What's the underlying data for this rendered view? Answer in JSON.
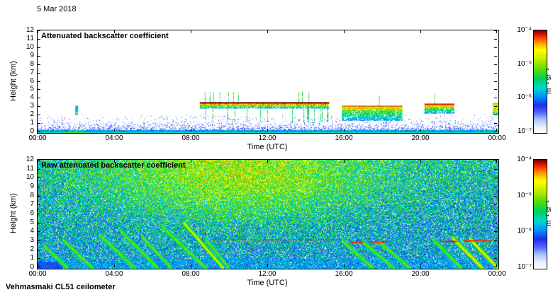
{
  "figure": {
    "date": "5 Mar 2018",
    "station": "Vehmasmaki CL51 ceilometer",
    "background_color": "#ffffff",
    "text_color": "#000000"
  },
  "colormap": {
    "name": "jet-like-with-white-floor",
    "stops": [
      [
        0.0,
        "#ffffff"
      ],
      [
        0.06,
        "#e6eeff"
      ],
      [
        0.13,
        "#a6c1ff"
      ],
      [
        0.2,
        "#4d64ff"
      ],
      [
        0.27,
        "#1f2fe8"
      ],
      [
        0.35,
        "#0090ff"
      ],
      [
        0.44,
        "#00d8cc"
      ],
      [
        0.53,
        "#00cf5c"
      ],
      [
        0.63,
        "#63df00"
      ],
      [
        0.73,
        "#cbef00"
      ],
      [
        0.81,
        "#ffff00"
      ],
      [
        0.88,
        "#ff9e00"
      ],
      [
        0.94,
        "#ff2a00"
      ],
      [
        1.0,
        "#770000"
      ]
    ]
  },
  "chart_data": [
    {
      "id": "attenuated-backscatter",
      "type": "heatmap",
      "title": "Attenuated backscatter coefficient",
      "xlabel": "Time (UTC)",
      "ylabel": "Height (km)",
      "x_range_hours": [
        0,
        24
      ],
      "x_tick_hours": [
        0,
        4,
        8,
        12,
        16,
        20,
        24
      ],
      "x_tick_labels": [
        "00:00",
        "04:00",
        "08:00",
        "12:00",
        "16:00",
        "20:00",
        "00:00"
      ],
      "y_range_km": [
        0,
        12
      ],
      "y_ticks": [
        0,
        1,
        2,
        3,
        4,
        5,
        6,
        7,
        8,
        9,
        10,
        11,
        12
      ],
      "colorbar": {
        "label": "m⁻¹ sr⁻¹",
        "tick_labels": [
          "10⁻⁴",
          "10⁻⁵",
          "10⁻⁶",
          "10⁻⁷"
        ],
        "scale": "log10",
        "range": [
          1e-07,
          0.0001
        ]
      },
      "summary": "White background with shallow aerosol/noise speckle below ~1.5 km all day; strong cloud layer near 3.2-3.6 km from ~08:30-15:10; cloud with fallstreaks ~15:50-19:00 near 2.8-3.2 km; cloud ~20:10-21:40 near 3-3.4 km; small echoes near 02:00 and 23:45; green surface patch ~01:20-02:40.",
      "surface_layer": {
        "max_height_km": 2.2,
        "decay_km": 0.62,
        "ground_band_km": 0.35,
        "green_patch": {
          "t0": 1.3,
          "t1": 2.7,
          "height_km": 0.35
        }
      },
      "clouds": [
        {
          "t0": 8.45,
          "t1": 15.2,
          "base_km": 3.15,
          "top_km": 3.6,
          "strength": 0.97,
          "virga": true,
          "top_spikes": true
        },
        {
          "t0": 15.85,
          "t1": 19.0,
          "base_km": 2.75,
          "top_km": 3.2,
          "strength": 0.92,
          "fall_to_km": 1.4,
          "top_spikes": true
        },
        {
          "t0": 20.15,
          "t1": 21.7,
          "base_km": 3.0,
          "top_km": 3.4,
          "strength": 0.92,
          "fall_to_km": 2.3,
          "top_spikes": true
        },
        {
          "t0": 1.95,
          "t1": 2.12,
          "base_km": 2.4,
          "top_km": 3.2,
          "strength": 0.5
        },
        {
          "t0": 23.7,
          "t1": 24.0,
          "base_km": 2.4,
          "top_km": 3.55,
          "strength": 0.85
        }
      ]
    },
    {
      "id": "raw-attenuated-backscatter",
      "type": "heatmap",
      "title": "Raw attenuated backscatter coefficient",
      "xlabel": "Time (UTC)",
      "ylabel": "Height (km)",
      "x_range_hours": [
        0,
        24
      ],
      "x_tick_hours": [
        0,
        4,
        8,
        12,
        16,
        20,
        24
      ],
      "x_tick_labels": [
        "00:00",
        "04:00",
        "08:00",
        "12:00",
        "16:00",
        "20:00",
        "00:00"
      ],
      "y_range_km": [
        0,
        12
      ],
      "y_ticks": [
        0,
        1,
        2,
        3,
        4,
        5,
        6,
        7,
        8,
        9,
        10,
        11,
        12
      ],
      "colorbar": {
        "label": "m⁻¹ sr⁻¹",
        "tick_labels": [
          "10⁻⁴",
          "10⁻⁵",
          "10⁻⁶",
          "10⁻⁷"
        ],
        "scale": "log10",
        "range": [
          1e-07,
          0.0001
        ]
      },
      "summary": "Dense blue-green noise over the whole domain, enhanced (yellow-orange) aloft around 07:00-14:00 above ~6 km; diagonal green precipitation fallstreaks descending to the surface; red cloud-base line near 3.2 km ~09:00-15:00 with shorter dashes later; solid bluish surface band below ~1 km.",
      "noise": {
        "base": 0.17,
        "height_gain": 0.1,
        "amplitude": 0.4,
        "white_speckle_prob": 0.09
      },
      "enhanced_region": {
        "t_center": 10.5,
        "t_sigma": 4.5,
        "h_center_km": 10.5,
        "h_sigma_km": 3.5,
        "boost": 0.24
      },
      "surface": {
        "band_km": 1.1,
        "dark_block": {
          "t0": 0,
          "t1": 1.3,
          "h_km": 0.8
        }
      },
      "precip_streaks": [
        {
          "t": 0.3,
          "h": 2.6,
          "dt": 1.3
        },
        {
          "t": 1.3,
          "h": 3.2,
          "dt": 1.6
        },
        {
          "t": 3.2,
          "h": 3.8,
          "dt": 1.9
        },
        {
          "t": 4.3,
          "h": 4.2,
          "dt": 2.0
        },
        {
          "t": 5.4,
          "h": 3.6,
          "dt": 1.6
        },
        {
          "t": 6.5,
          "h": 4.6,
          "dt": 2.3
        },
        {
          "t": 7.6,
          "h": 5.1,
          "dt": 2.1,
          "v": 0.75
        },
        {
          "t": 8.7,
          "h": 3.4,
          "dt": 1.3
        },
        {
          "t": 15.9,
          "h": 3.0,
          "dt": 1.6
        },
        {
          "t": 16.9,
          "h": 3.0,
          "dt": 1.7
        },
        {
          "t": 17.9,
          "h": 2.8,
          "dt": 1.5
        },
        {
          "t": 20.6,
          "h": 3.2,
          "dt": 1.5
        },
        {
          "t": 21.6,
          "h": 3.4,
          "dt": 1.6,
          "v": 0.78
        },
        {
          "t": 22.5,
          "h": 3.3,
          "dt": 1.5,
          "v": 0.8
        }
      ],
      "cloud_base_lines": [
        {
          "t0": 9.0,
          "t1": 15.2,
          "h_km": 3.2
        },
        {
          "t0": 16.3,
          "t1": 16.95,
          "h_km": 2.95
        },
        {
          "t0": 17.4,
          "t1": 18.15,
          "h_km": 2.9
        },
        {
          "t0": 21.0,
          "t1": 21.85,
          "h_km": 3.0
        },
        {
          "t0": 22.2,
          "t1": 23.6,
          "h_km": 3.05
        }
      ]
    }
  ]
}
